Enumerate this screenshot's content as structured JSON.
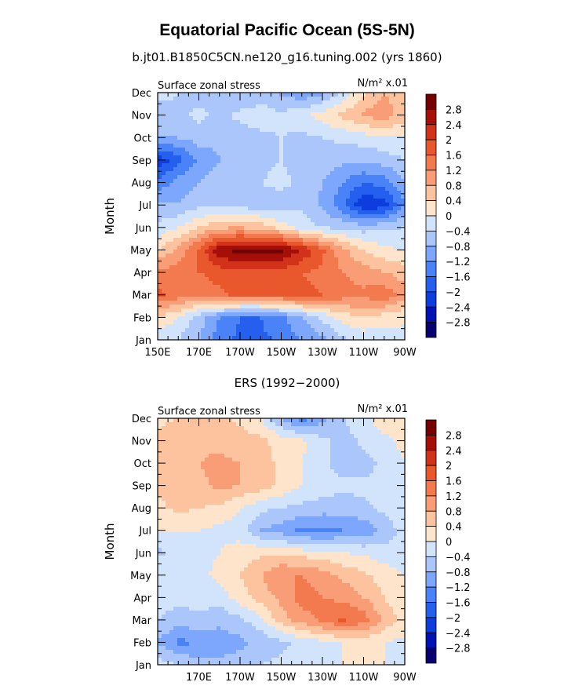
{
  "figure": {
    "title": "Equatorial Pacific Ocean (5S-5N)"
  },
  "colorbar": {
    "colors": [
      "#08006e",
      "#0012b4",
      "#0d3ddc",
      "#245fee",
      "#4a83f8",
      "#7ca7fc",
      "#aac6fb",
      "#d2e3fc",
      "#ffe4cc",
      "#fdc39f",
      "#f89d75",
      "#f37a4e",
      "#e9572d",
      "#d2321a",
      "#a60f07",
      "#760000"
    ],
    "labels": [
      "2.8",
      "2.4",
      "2",
      "1.6",
      "1.2",
      "0.8",
      "0.4",
      "0",
      "−0.4",
      "−0.8",
      "−1.2",
      "−1.6",
      "−2",
      "−2.4",
      "−2.8"
    ]
  },
  "chart_data": [
    {
      "type": "heatmap",
      "title": "b.jt01.B1850C5CN.ne120_g16.tuning.002 (yrs 1860)",
      "left_label": "Surface zonal stress",
      "right_label": "N/m² x.01",
      "ylabel": "Month",
      "x_tick_labels": [
        "150E",
        "170E",
        "170W",
        "150W",
        "130W",
        "110W",
        "90W"
      ],
      "y_tick_labels": [
        "Dec",
        "Nov",
        "Oct",
        "Sep",
        "Aug",
        "Jul",
        "Jun",
        "May",
        "Apr",
        "Mar",
        "Feb",
        "Jan"
      ],
      "levels": [
        -2.8,
        -2.4,
        -2,
        -1.6,
        -1.2,
        -0.8,
        -0.4,
        0,
        0.4,
        0.8,
        1.2,
        1.6,
        2,
        2.4,
        2.8
      ],
      "x_range": [
        150,
        270
      ],
      "y_range": [
        "Jan",
        "Dec"
      ],
      "x": [
        150,
        160,
        170,
        180,
        190,
        200,
        210,
        220,
        230,
        240,
        250,
        260,
        270
      ],
      "months": [
        "Jan",
        "Feb",
        "Mar",
        "Apr",
        "May",
        "Jun",
        "Jul",
        "Aug",
        "Sep",
        "Oct",
        "Nov",
        "Dec"
      ],
      "z": [
        [
          -0.2,
          -0.4,
          -0.8,
          -1.4,
          -1.7,
          -1.7,
          -1.5,
          -1.2,
          -0.9,
          -0.5,
          -0.3,
          -0.2,
          -0.2
        ],
        [
          0.3,
          0.0,
          -0.6,
          -1.2,
          -1.6,
          -1.6,
          -1.3,
          -0.8,
          -0.3,
          0.2,
          0.4,
          0.2,
          0.1
        ],
        [
          1.7,
          1.4,
          1.2,
          1.5,
          1.7,
          1.7,
          1.7,
          1.7,
          1.6,
          1.4,
          1.3,
          1.5,
          1.0
        ],
        [
          1.3,
          1.4,
          1.6,
          1.8,
          1.9,
          1.9,
          1.8,
          1.6,
          1.5,
          1.2,
          1.0,
          0.8,
          0.6
        ],
        [
          0.4,
          0.9,
          1.7,
          2.7,
          3.0,
          3.0,
          2.9,
          2.4,
          1.7,
          0.9,
          0.4,
          0.1,
          0.0
        ],
        [
          -0.3,
          0.0,
          0.4,
          0.7,
          0.8,
          0.6,
          0.2,
          -0.2,
          -0.4,
          -0.5,
          -0.6,
          -0.5,
          -0.4
        ],
        [
          -0.7,
          -0.8,
          -0.5,
          -0.5,
          -0.6,
          -0.6,
          -0.6,
          -0.5,
          -0.9,
          -1.5,
          -2.4,
          -2.2,
          -1.2
        ],
        [
          -1.5,
          -1.0,
          -0.8,
          -0.6,
          -0.5,
          -0.4,
          -0.3,
          -0.5,
          -0.8,
          -1.2,
          -1.6,
          -1.4,
          -0.8
        ],
        [
          -2.3,
          -1.8,
          -1.1,
          -0.8,
          -0.6,
          -0.5,
          -0.4,
          -0.5,
          -0.6,
          -0.7,
          -0.7,
          -0.6,
          -0.4
        ],
        [
          -0.8,
          -0.8,
          -0.6,
          -0.7,
          -0.6,
          -0.5,
          -0.4,
          -0.5,
          -0.4,
          -0.3,
          -0.2,
          -0.1,
          0.0
        ],
        [
          -0.7,
          -0.5,
          -0.3,
          -0.5,
          -0.3,
          -0.2,
          -0.3,
          -0.1,
          0.2,
          0.5,
          0.9,
          1.0,
          0.6
        ],
        [
          -0.2,
          -0.4,
          -0.6,
          -0.7,
          -0.8,
          -0.6,
          -0.9,
          -1.1,
          -0.9,
          -0.3,
          0.3,
          0.8,
          0.5
        ]
      ]
    },
    {
      "type": "heatmap",
      "title": "ERS (1992−2000)",
      "left_label": "Surface zonal stress",
      "right_label": "N/m² x.01",
      "ylabel": "Month",
      "x_tick_labels": [
        "",
        "170E",
        "170W",
        "150W",
        "130W",
        "110W",
        "90W"
      ],
      "y_tick_labels": [
        "Dec",
        "Nov",
        "Oct",
        "Sep",
        "Aug",
        "Jul",
        "Jun",
        "May",
        "Apr",
        "Mar",
        "Feb",
        "Jan"
      ],
      "levels": [
        -2.8,
        -2.4,
        -2,
        -1.6,
        -1.2,
        -0.8,
        -0.4,
        0,
        0.4,
        0.8,
        1.2,
        1.6,
        2,
        2.4,
        2.8
      ],
      "x_range": [
        150,
        270
      ],
      "y_range": [
        "Jan",
        "Dec"
      ],
      "x": [
        150,
        160,
        170,
        180,
        190,
        200,
        210,
        220,
        230,
        240,
        250,
        260,
        270
      ],
      "months": [
        "Jan",
        "Feb",
        "Mar",
        "Apr",
        "May",
        "Jun",
        "Jul",
        "Aug",
        "Sep",
        "Oct",
        "Nov",
        "Dec"
      ],
      "z": [
        [
          -0.2,
          -0.4,
          -0.6,
          -0.7,
          -0.6,
          -0.4,
          -0.3,
          -0.2,
          -0.1,
          0.0,
          0.1,
          0.0,
          0.0
        ],
        [
          -0.8,
          -1.3,
          -1.2,
          -1.0,
          -0.9,
          -0.7,
          -0.5,
          -0.3,
          -0.1,
          0.0,
          0.1,
          0.0,
          -0.1
        ],
        [
          -0.4,
          -0.6,
          -0.5,
          -0.7,
          -0.5,
          -0.1,
          0.6,
          1.0,
          1.3,
          1.7,
          1.4,
          0.7,
          0.2
        ],
        [
          -0.2,
          -0.3,
          -0.2,
          -0.2,
          0.2,
          0.6,
          0.9,
          1.4,
          1.2,
          1.1,
          0.8,
          0.4,
          0.1
        ],
        [
          -0.1,
          -0.2,
          -0.1,
          0.1,
          0.4,
          0.8,
          1.2,
          1.2,
          1.0,
          0.7,
          0.5,
          0.2,
          0.0
        ],
        [
          -0.5,
          -0.3,
          -0.1,
          0.0,
          0.2,
          0.3,
          0.3,
          0.2,
          0.1,
          0.0,
          -0.1,
          -0.2,
          -0.3
        ],
        [
          0.1,
          0.0,
          0.0,
          -0.1,
          -0.2,
          -0.8,
          -1.0,
          -1.3,
          -1.3,
          -1.2,
          -1.1,
          -0.7,
          -0.2
        ],
        [
          0.3,
          0.5,
          0.4,
          0.3,
          0.0,
          -0.3,
          -0.4,
          -0.5,
          -0.6,
          -0.6,
          -0.5,
          -0.3,
          -0.1
        ],
        [
          0.5,
          0.6,
          0.7,
          0.9,
          0.8,
          0.6,
          0.3,
          0.0,
          -0.2,
          -0.3,
          -0.3,
          -0.2,
          0.0
        ],
        [
          0.6,
          0.7,
          0.8,
          0.9,
          0.8,
          0.6,
          0.3,
          0.0,
          -0.3,
          -0.6,
          -0.6,
          -0.3,
          0.0
        ],
        [
          0.5,
          0.6,
          0.7,
          0.7,
          0.6,
          0.5,
          0.2,
          0.1,
          -0.3,
          -0.6,
          -0.3,
          -0.1,
          0.1
        ],
        [
          0.3,
          0.4,
          0.4,
          0.5,
          0.3,
          0.0,
          -0.8,
          -1.4,
          -0.9,
          -0.4,
          -0.1,
          0.2,
          0.4
        ]
      ]
    }
  ]
}
